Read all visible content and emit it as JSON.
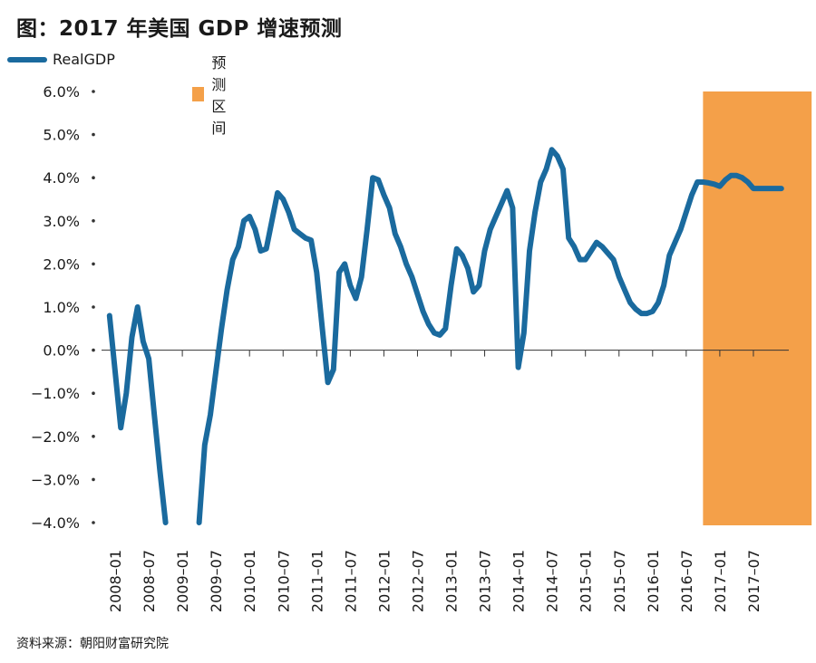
{
  "title": "图：2017 年美国 GDP 增速预测",
  "legend": {
    "line_label": "RealGDP",
    "band_label": "预测区间"
  },
  "source": "资料来源：朝阳财富研究院",
  "colors": {
    "line": "#1a6a9e",
    "band": "#f4a049",
    "axis": "#333333"
  },
  "chart_data": {
    "type": "line",
    "title": "图：2017 年美国 GDP 增速预测",
    "xlabel": "",
    "ylabel": "",
    "ylim": [
      -4,
      6
    ],
    "y_ticks": [
      "6.0%",
      "5.0%",
      "4.0%",
      "3.0%",
      "2.0%",
      "1.0%",
      "0.0%",
      "-1.0%",
      "-2.0%",
      "-3.0%",
      "-4.0%"
    ],
    "x_ticks": [
      "2008-01",
      "2008-07",
      "2009-01",
      "2009-07",
      "2010-01",
      "2010-07",
      "2011-01",
      "2011-07",
      "2012-01",
      "2012-07",
      "2013-01",
      "2013-07",
      "2014-01",
      "2014-07",
      "2015-01",
      "2015-07",
      "2016-01",
      "2016-07",
      "2017-01",
      "2017-07"
    ],
    "forecast_band": {
      "label": "预测区间",
      "start": "2016-10",
      "end": "2017-12"
    },
    "series": [
      {
        "name": "RealGDP",
        "segments": [
          {
            "x": [
              "2007-12",
              "2008-01",
              "2008-02",
              "2008-03",
              "2008-04",
              "2008-05",
              "2008-06",
              "2008-07",
              "2008-08",
              "2008-09",
              "2008-10"
            ],
            "y": [
              0.8,
              -0.5,
              -1.8,
              -1.0,
              0.3,
              1.0,
              0.2,
              -0.2,
              -1.5,
              -2.8,
              -4.0
            ]
          },
          {
            "x": [
              "2009-04",
              "2009-05",
              "2009-06",
              "2009-07",
              "2009-08",
              "2009-09",
              "2009-10",
              "2009-11",
              "2009-12",
              "2010-01",
              "2010-02",
              "2010-03",
              "2010-04",
              "2010-05",
              "2010-06",
              "2010-07",
              "2010-08",
              "2010-09",
              "2010-10",
              "2010-11",
              "2010-12",
              "2011-01",
              "2011-02",
              "2011-03",
              "2011-04",
              "2011-05",
              "2011-06",
              "2011-07",
              "2011-08",
              "2011-09",
              "2011-10",
              "2011-11",
              "2011-12",
              "2012-01",
              "2012-02",
              "2012-03",
              "2012-04",
              "2012-05",
              "2012-06",
              "2012-07",
              "2012-08",
              "2012-09",
              "2012-10",
              "2012-11",
              "2012-12",
              "2013-01",
              "2013-02",
              "2013-03",
              "2013-04",
              "2013-05",
              "2013-06",
              "2013-07",
              "2013-08",
              "2013-09",
              "2013-10",
              "2013-11",
              "2013-12",
              "2014-01",
              "2014-02",
              "2014-03",
              "2014-04",
              "2014-05",
              "2014-06",
              "2014-07",
              "2014-08",
              "2014-09",
              "2014-10",
              "2014-11",
              "2014-12",
              "2015-01",
              "2015-02",
              "2015-03",
              "2015-04",
              "2015-05",
              "2015-06",
              "2015-07",
              "2015-08",
              "2015-09",
              "2015-10",
              "2015-11",
              "2015-12",
              "2016-01",
              "2016-02",
              "2016-03",
              "2016-04",
              "2016-05",
              "2016-06",
              "2016-07",
              "2016-08",
              "2016-09",
              "2016-10",
              "2016-11",
              "2016-12",
              "2017-01",
              "2017-02",
              "2017-03",
              "2017-04",
              "2017-05",
              "2017-06",
              "2017-07",
              "2017-08",
              "2017-09",
              "2017-10",
              "2017-11",
              "2017-12"
            ],
            "y": [
              -4.0,
              -2.2,
              -1.5,
              -0.5,
              0.5,
              1.4,
              2.1,
              2.4,
              3.0,
              3.1,
              2.8,
              2.3,
              2.35,
              3.0,
              3.65,
              3.5,
              3.2,
              2.8,
              2.7,
              2.6,
              2.55,
              1.8,
              0.5,
              -0.75,
              -0.45,
              1.8,
              2.0,
              1.5,
              1.2,
              1.7,
              2.8,
              4.0,
              3.95,
              3.6,
              3.3,
              2.7,
              2.4,
              2.0,
              1.7,
              1.3,
              0.9,
              0.6,
              0.4,
              0.35,
              0.5,
              1.5,
              2.35,
              2.2,
              1.9,
              1.35,
              1.5,
              2.3,
              2.8,
              3.1,
              3.4,
              3.7,
              3.3,
              -0.4,
              0.4,
              2.3,
              3.2,
              3.9,
              4.2,
              4.65,
              4.5,
              4.2,
              2.6,
              2.4,
              2.1,
              2.1,
              2.3,
              2.5,
              2.4,
              2.25,
              2.1,
              1.7,
              1.4,
              1.1,
              0.95,
              0.85,
              0.85,
              0.9,
              1.1,
              1.5,
              2.2,
              2.5,
              2.8,
              3.2,
              3.6,
              3.9,
              3.9,
              3.88,
              3.85,
              3.8,
              3.95,
              4.05,
              4.05,
              4.0,
              3.9,
              3.75,
              3.75,
              3.75,
              3.75,
              3.75,
              3.75
            ]
          }
        ]
      }
    ]
  }
}
